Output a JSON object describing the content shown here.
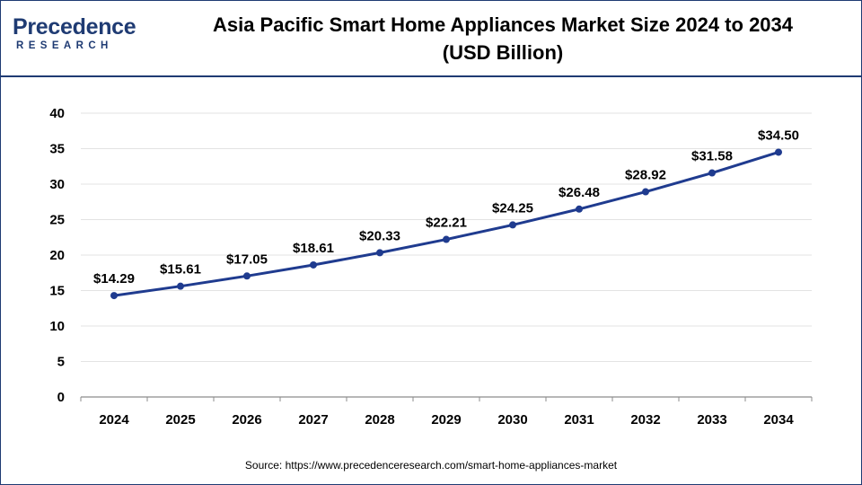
{
  "brand": {
    "logo_text": "Precedence",
    "logo_subtext": "RESEARCH",
    "color": "#1f3b73"
  },
  "title_line1": "Asia Pacific Smart Home Appliances Market Size 2024 to 2034",
  "title_line2": "(USD Billion)",
  "source": "Source: https://www.precedenceresearch.com/smart-home-appliances-market",
  "chart_data": {
    "type": "line",
    "title": "Asia Pacific Smart Home Appliances Market Size 2024 to 2034 (USD Billion)",
    "xlabel": "",
    "ylabel": "",
    "categories": [
      "2024",
      "2025",
      "2026",
      "2027",
      "2028",
      "2029",
      "2030",
      "2031",
      "2032",
      "2033",
      "2034"
    ],
    "values": [
      14.29,
      15.61,
      17.05,
      18.61,
      20.33,
      22.21,
      24.25,
      26.48,
      28.92,
      31.58,
      34.5
    ],
    "data_labels": [
      "$14.29",
      "$15.61",
      "$17.05",
      "$18.61",
      "$20.33",
      "$22.21",
      "$24.25",
      "$26.48",
      "$28.92",
      "$31.58",
      "$34.50"
    ],
    "ylim": [
      0,
      40
    ],
    "yticks": [
      0,
      5,
      10,
      15,
      20,
      25,
      30,
      35,
      40
    ],
    "grid": true,
    "line_color": "#1f3b8f"
  }
}
